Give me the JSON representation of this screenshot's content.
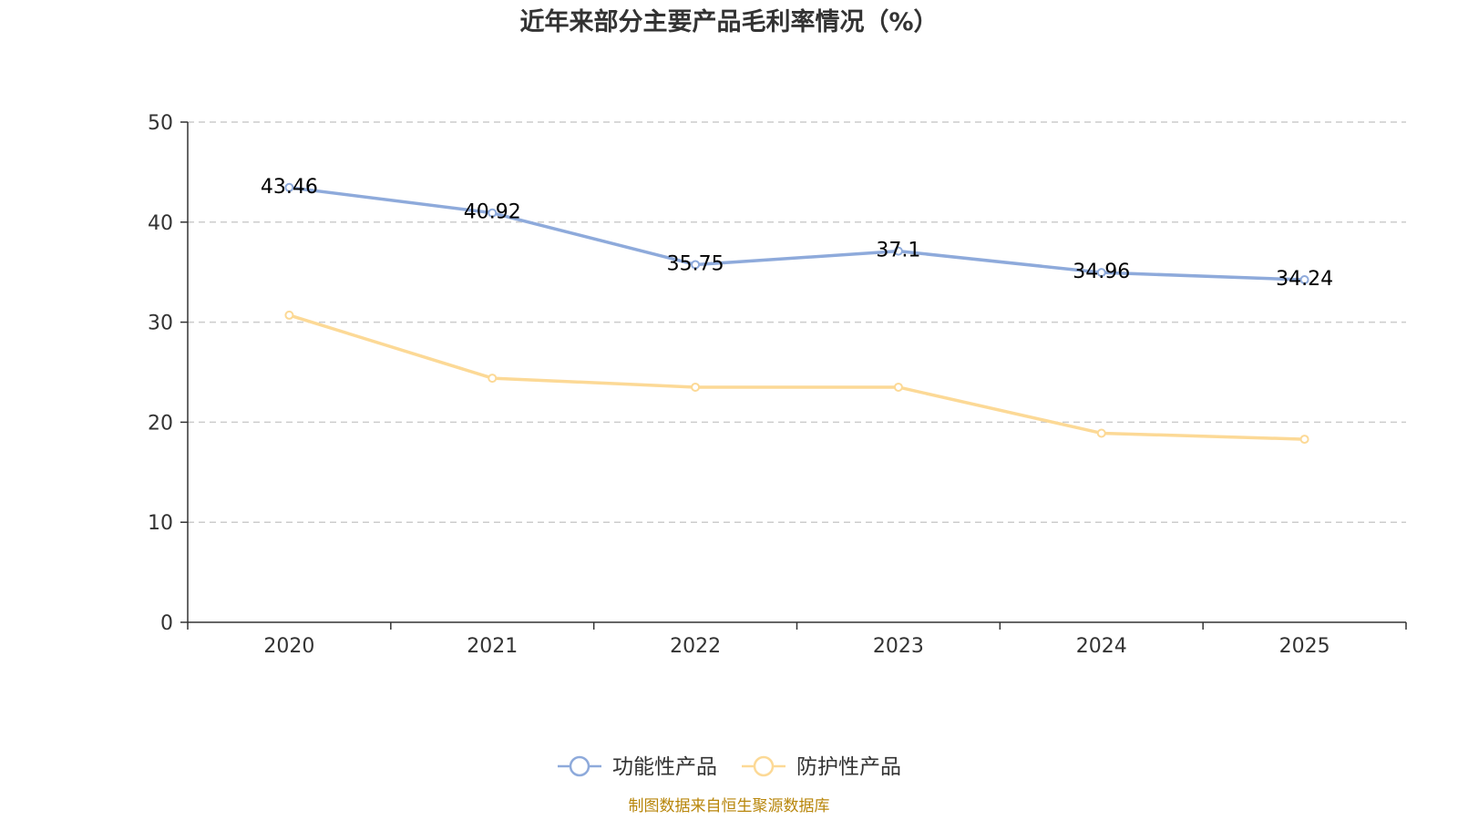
{
  "chart_data": {
    "type": "line",
    "title": "近年来部分主要产品毛利率情况（%）",
    "categories": [
      "2020",
      "2021",
      "2022",
      "2023",
      "2024",
      "2025"
    ],
    "ylim": [
      0,
      50
    ],
    "yticks": [
      0,
      10,
      20,
      30,
      40,
      50
    ],
    "grid": true,
    "legend_position": "bottom-center",
    "series": [
      {
        "name": "功能性产品",
        "color": "#8eaadb",
        "values": [
          43.46,
          40.92,
          35.75,
          37.1,
          34.96,
          34.24
        ],
        "labels": [
          "43.46",
          "40.92",
          "35.75",
          "37.1",
          "34.96",
          "34.24"
        ],
        "show_labels": true
      },
      {
        "name": "防护性产品",
        "color": "#fcd996",
        "values": [
          30.7,
          24.4,
          23.5,
          23.5,
          18.9,
          18.3
        ],
        "show_labels": false
      }
    ]
  },
  "source_text": "制图数据来自恒生聚源数据库"
}
